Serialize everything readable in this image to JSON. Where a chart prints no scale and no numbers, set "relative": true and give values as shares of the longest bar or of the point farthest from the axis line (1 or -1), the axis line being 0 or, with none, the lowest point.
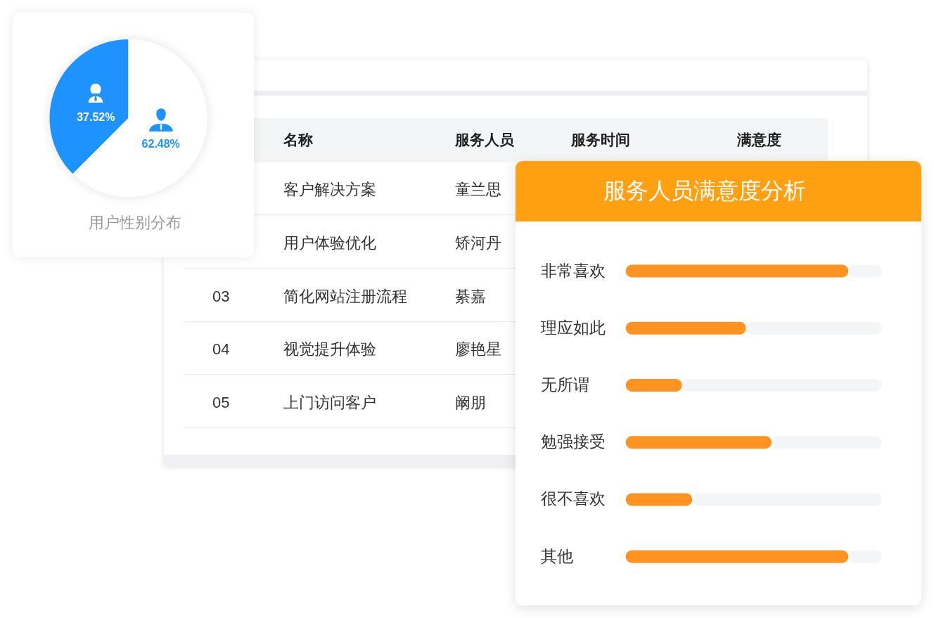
{
  "chart_data": [
    {
      "type": "pie",
      "title": "用户性别分布",
      "categories": [
        null,
        null
      ],
      "values": [
        37.52,
        62.48
      ],
      "colors": [
        "#1e93ff",
        "#ffffff"
      ],
      "value_labels": [
        "37.52%",
        "62.48%"
      ]
    },
    {
      "type": "other",
      "categories": [
        "名称",
        "服务人员",
        "服务时间",
        "满意度"
      ],
      "y_categories": [
        null,
        null,
        "03",
        "04",
        "05"
      ],
      "cell_labels": [
        [
          "客户解决方案",
          "童兰思",
          null,
          null
        ],
        [
          "用户体验优化",
          "矫河丹",
          null,
          null
        ],
        [
          "简化网站注册流程",
          "綦嘉",
          null,
          null
        ],
        [
          "视觉提升体验",
          "廖艳星",
          null,
          null
        ],
        [
          "上门访问客户",
          "阚朋",
          null,
          null
        ]
      ]
    },
    {
      "type": "bar",
      "title": "服务人员满意度分析",
      "orientation": "horizontal",
      "stacked": true,
      "relative": true,
      "categories": [
        "非常喜欢",
        "理应如此",
        "无所谓",
        "勉强接受",
        "很不喜欢",
        "其他"
      ],
      "series": [
        {
          "color": "#ff9322",
          "values": [
            0.87,
            0.47,
            0.22,
            0.57,
            0.26,
            0.87
          ]
        },
        {
          "color": "#f4f5f7",
          "values": [
            0.13,
            0.53,
            0.78,
            0.43,
            0.74,
            0.13
          ]
        }
      ]
    }
  ]
}
